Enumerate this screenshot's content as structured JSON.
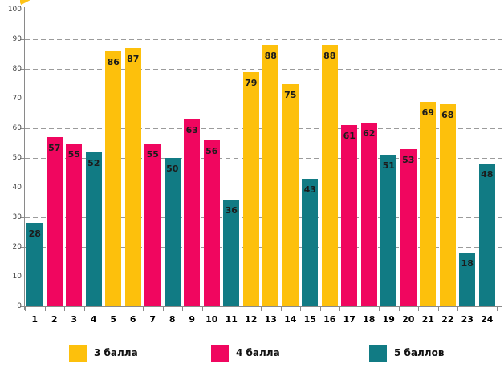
{
  "chart_data": {
    "type": "bar",
    "categories": [
      "1",
      "2",
      "3",
      "4",
      "5",
      "6",
      "7",
      "8",
      "9",
      "10",
      "11",
      "12",
      "13",
      "14",
      "15",
      "16",
      "17",
      "18",
      "19",
      "20",
      "21",
      "22",
      "23",
      "24"
    ],
    "values": [
      28,
      57,
      55,
      52,
      86,
      87,
      55,
      50,
      63,
      56,
      36,
      79,
      88,
      75,
      43,
      88,
      61,
      62,
      51,
      53,
      69,
      68,
      18,
      48
    ],
    "point_color_keys": [
      "teal",
      "pink",
      "pink",
      "teal",
      "yellow",
      "yellow",
      "pink",
      "teal",
      "pink",
      "pink",
      "teal",
      "yellow",
      "yellow",
      "yellow",
      "teal",
      "yellow",
      "pink",
      "pink",
      "teal",
      "pink",
      "yellow",
      "yellow",
      "teal",
      "teal"
    ],
    "color_map": {
      "yellow": "#FDC00C",
      "pink": "#F0065F",
      "teal": "#117B84"
    },
    "ylim": [
      0,
      100
    ],
    "yticks": [
      0,
      10,
      20,
      30,
      40,
      50,
      60,
      70,
      80,
      90,
      100
    ],
    "grid": {
      "horizontal": true,
      "style": "dashed",
      "color": "#9b9b9b"
    },
    "axis_color": "#8a8a8a",
    "value_label_color": "#1c1c1c",
    "legend": {
      "position": "bottom",
      "items": [
        {
          "label": "3 балла",
          "color_key": "yellow"
        },
        {
          "label": "4 балла",
          "color_key": "pink"
        },
        {
          "label": "5 баллов",
          "color_key": "teal"
        }
      ]
    }
  }
}
